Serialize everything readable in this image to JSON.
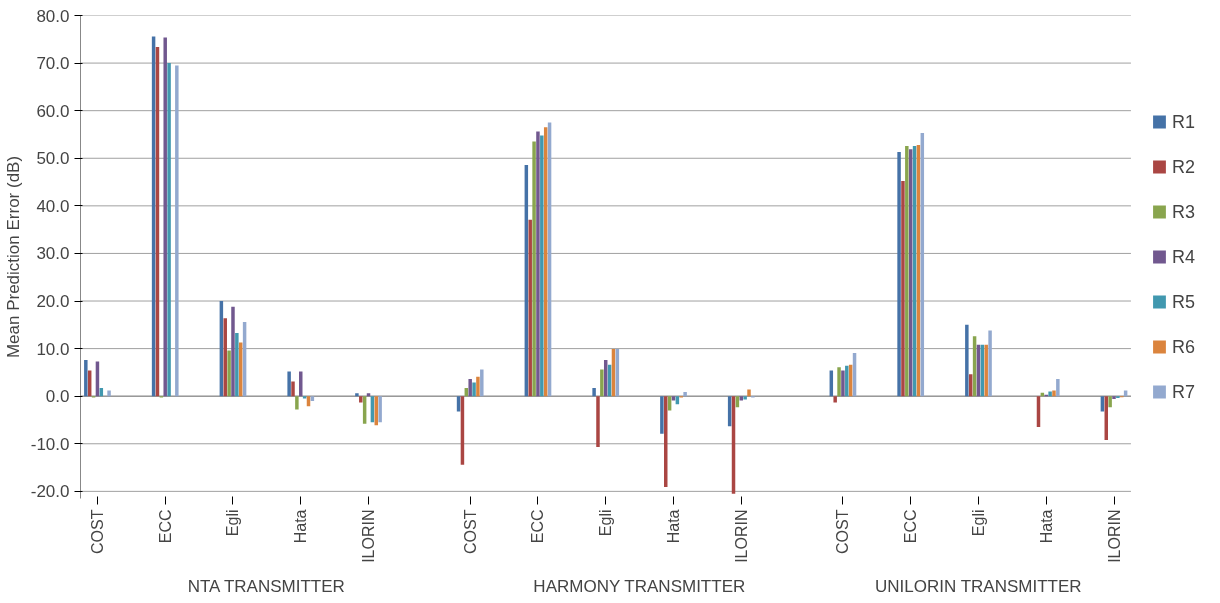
{
  "chart_data": {
    "type": "bar",
    "ylabel": "Mean Prediction Error (dB)",
    "categories": [
      "COST",
      null,
      "ECC",
      null,
      "Egli",
      null,
      "Hata",
      null,
      "ILORIN",
      null,
      null,
      "COST",
      null,
      "ECC",
      null,
      "Egli",
      null,
      "Hata",
      null,
      "ILORIN",
      null,
      null,
      "COST",
      null,
      "ECC",
      null,
      "Egli",
      null,
      "Hata",
      null,
      "ILORIN"
    ],
    "series": [
      {
        "name": "R1",
        "color": "#4572a7",
        "values": [
          7.6,
          null,
          75.6,
          null,
          20.0,
          null,
          5.2,
          null,
          0.6,
          null,
          null,
          -3.2,
          null,
          48.6,
          null,
          1.7,
          null,
          -7.9,
          null,
          -6.3,
          null,
          null,
          5.4,
          null,
          51.3,
          null,
          15.0,
          null,
          0.0,
          null,
          -3.2
        ]
      },
      {
        "name": "R2",
        "color": "#aa4643",
        "values": [
          5.4,
          null,
          73.4,
          null,
          16.4,
          null,
          3.1,
          null,
          -1.3,
          null,
          null,
          -14.4,
          null,
          37.1,
          null,
          -10.7,
          null,
          -19.1,
          null,
          -20.5,
          null,
          null,
          -1.3,
          null,
          45.2,
          null,
          4.6,
          null,
          -6.5,
          null,
          -9.2
        ]
      },
      {
        "name": "R3",
        "color": "#89a54e",
        "values": [
          -0.3,
          null,
          -0.3,
          null,
          9.6,
          null,
          -2.8,
          null,
          -5.8,
          null,
          null,
          1.7,
          null,
          53.5,
          null,
          5.6,
          null,
          -3.0,
          null,
          -2.3,
          null,
          null,
          6.1,
          null,
          52.6,
          null,
          12.6,
          null,
          0.7,
          null,
          -2.3
        ]
      },
      {
        "name": "R4",
        "color": "#71588f",
        "values": [
          7.3,
          null,
          75.4,
          null,
          18.8,
          null,
          5.2,
          null,
          0.6,
          null,
          null,
          3.6,
          null,
          55.6,
          null,
          7.6,
          null,
          -0.9,
          null,
          -0.9,
          null,
          null,
          5.4,
          null,
          51.9,
          null,
          10.8,
          null,
          0.3,
          null,
          -0.6
        ]
      },
      {
        "name": "R5",
        "color": "#4198af",
        "values": [
          1.7,
          null,
          70.0,
          null,
          13.3,
          null,
          -0.5,
          null,
          -5.5,
          null,
          null,
          2.9,
          null,
          54.8,
          null,
          6.6,
          null,
          -1.7,
          null,
          -0.7,
          null,
          null,
          6.4,
          null,
          52.6,
          null,
          10.8,
          null,
          1.0,
          null,
          -0.4
        ]
      },
      {
        "name": "R6",
        "color": "#db843d",
        "values": [
          null,
          null,
          null,
          null,
          11.3,
          null,
          -2.1,
          null,
          -6.1,
          null,
          null,
          4.1,
          null,
          56.5,
          null,
          9.9,
          null,
          -0.3,
          null,
          1.4,
          null,
          null,
          6.6,
          null,
          52.8,
          null,
          10.8,
          null,
          1.2,
          null,
          -0.2
        ]
      },
      {
        "name": "R7",
        "color": "#93a9cf",
        "values": [
          1.2,
          null,
          69.5,
          null,
          15.6,
          null,
          -1.0,
          null,
          -5.5,
          null,
          null,
          5.6,
          null,
          57.5,
          null,
          9.9,
          null,
          0.9,
          null,
          -0.3,
          null,
          null,
          9.1,
          null,
          55.3,
          null,
          13.8,
          null,
          3.6,
          null,
          1.2
        ]
      }
    ],
    "annotations": [
      "NTA TRANSMITTER",
      "HARMONY TRANSMITTER",
      "UNILORIN TRANSMITTER"
    ],
    "ylim": [
      -21.5,
      80
    ],
    "yticks": [
      {
        "value": -20,
        "label": "-20.0"
      },
      {
        "value": -10,
        "label": "-10.0"
      },
      {
        "value": 0,
        "label": "0.0"
      },
      {
        "value": 10,
        "label": "10.0"
      },
      {
        "value": 20,
        "label": "20.0"
      },
      {
        "value": 30,
        "label": "30.0"
      },
      {
        "value": 40,
        "label": "40.0"
      },
      {
        "value": 50,
        "label": "50.0"
      },
      {
        "value": 60,
        "label": "60.0"
      },
      {
        "value": 70,
        "label": "70.0"
      },
      {
        "value": 80,
        "label": "80.0"
      }
    ],
    "grid": "y",
    "legend": "right"
  }
}
